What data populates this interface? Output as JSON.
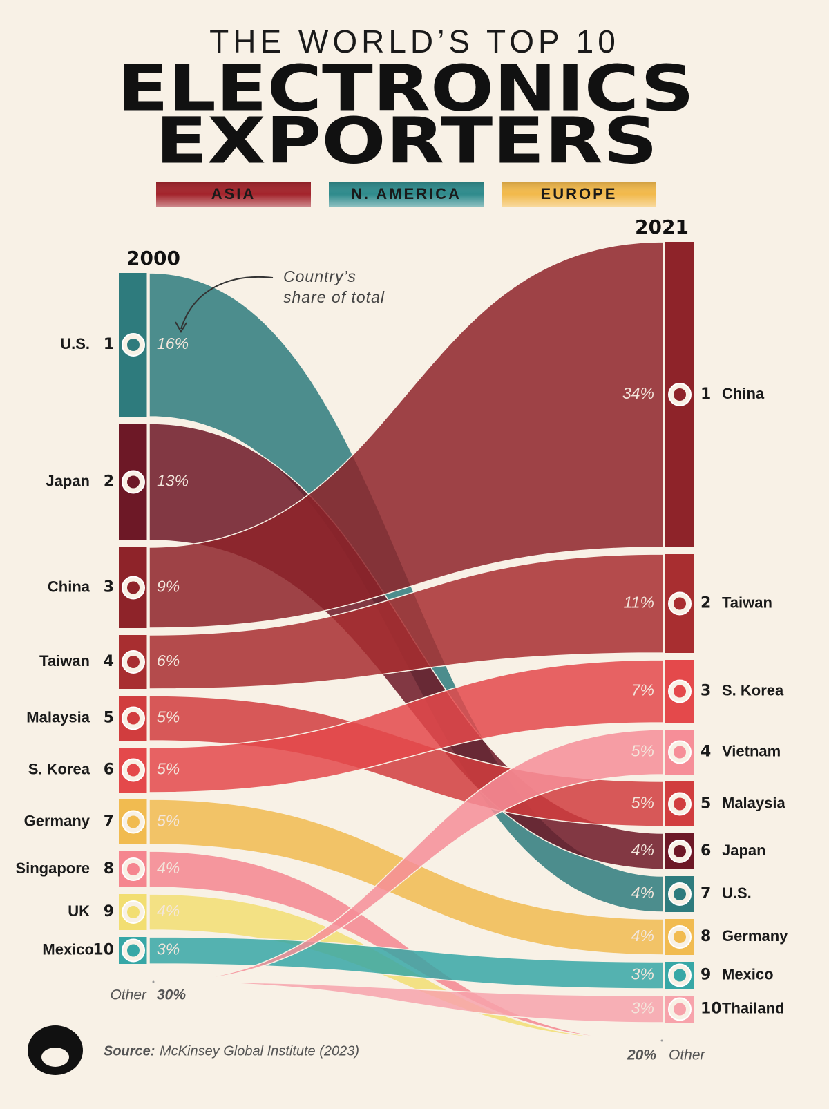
{
  "chart_data": {
    "type": "sankey",
    "pretitle": "THE WORLD’S TOP 10",
    "title_lines": [
      "ELECTRONICS",
      "EXPORTERS"
    ],
    "legend": [
      {
        "name": "ASIA",
        "color": "#a3242b"
      },
      {
        "name": "N. AMERICA",
        "color": "#2f8b8c"
      },
      {
        "name": "EUROPE",
        "color": "#f2b94b"
      }
    ],
    "categories": [
      "2000",
      "2021"
    ],
    "annotation_lines": [
      "Country’s",
      "share of total"
    ],
    "series": [
      {
        "name": "U.S.",
        "color": "#2e7b7d",
        "ranks": [
          1,
          7
        ],
        "values": [
          16,
          4
        ],
        "value_labels": [
          "16%",
          "4%"
        ]
      },
      {
        "name": "Japan",
        "color": "#6d1826",
        "ranks": [
          2,
          6
        ],
        "values": [
          13,
          4
        ],
        "value_labels": [
          "13%",
          "4%"
        ]
      },
      {
        "name": "China",
        "color": "#8e2329",
        "ranks": [
          3,
          1
        ],
        "values": [
          9,
          34
        ],
        "value_labels": [
          "9%",
          "34%"
        ]
      },
      {
        "name": "Taiwan",
        "color": "#a82e30",
        "ranks": [
          4,
          2
        ],
        "values": [
          6,
          11
        ],
        "value_labels": [
          "6%",
          "11%"
        ]
      },
      {
        "name": "Malaysia",
        "color": "#d13d3e",
        "ranks": [
          5,
          5
        ],
        "values": [
          5,
          5
        ],
        "value_labels": [
          "5%",
          "5%"
        ]
      },
      {
        "name": "S. Korea",
        "color": "#e4494b",
        "ranks": [
          6,
          3
        ],
        "values": [
          5,
          7
        ],
        "value_labels": [
          "5%",
          "7%"
        ]
      },
      {
        "name": "Germany",
        "color": "#f1bb50",
        "ranks": [
          7,
          8
        ],
        "values": [
          5,
          4
        ],
        "value_labels": [
          "5%",
          "4%"
        ]
      },
      {
        "name": "Singapore",
        "color": "#f5868f",
        "ranks": [
          8,
          null
        ],
        "values": [
          4,
          null
        ],
        "value_labels": [
          "4%",
          null
        ]
      },
      {
        "name": "UK",
        "color": "#f2de72",
        "ranks": [
          9,
          null
        ],
        "values": [
          4,
          null
        ],
        "value_labels": [
          "4%",
          null
        ]
      },
      {
        "name": "Mexico",
        "color": "#37a7a6",
        "ranks": [
          10,
          9
        ],
        "values": [
          3,
          3
        ],
        "value_labels": [
          "3%",
          "3%"
        ]
      },
      {
        "name": "Vietnam",
        "color": "#f68e98",
        "ranks": [
          null,
          4
        ],
        "values": [
          null,
          5
        ],
        "value_labels": [
          null,
          "5%"
        ]
      },
      {
        "name": "Thailand",
        "color": "#f7a3ab",
        "ranks": [
          null,
          10
        ],
        "values": [
          null,
          3
        ],
        "value_labels": [
          null,
          "3%"
        ]
      }
    ],
    "other": {
      "name": "Other",
      "values": [
        30,
        20
      ],
      "value_labels": [
        "30%",
        "20%"
      ]
    },
    "source_label": "Source:",
    "source": "McKinsey Global Institute (2023)"
  }
}
